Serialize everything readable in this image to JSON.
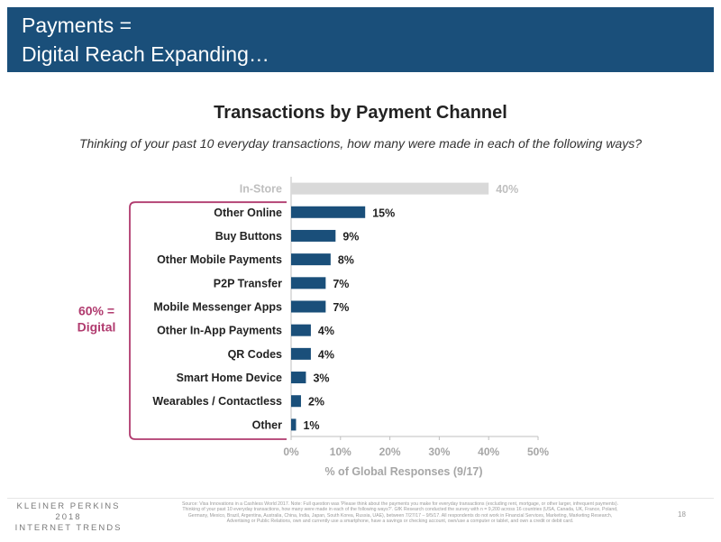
{
  "header": {
    "line1": "Payments =",
    "line2": "Digital Reach Expanding…"
  },
  "chart_data": {
    "type": "bar",
    "orientation": "horizontal",
    "title": "Transactions by Payment Channel",
    "subtitle": "Thinking of your past 10 everyday transactions, how many were made in each of the following ways?",
    "categories": [
      "In-Store",
      "Other Online",
      "Buy Buttons",
      "Other Mobile Payments",
      "P2P Transfer",
      "Mobile Messenger Apps",
      "Other In-App Payments",
      "QR Codes",
      "Smart Home Device",
      "Wearables / Contactless",
      "Other"
    ],
    "values": [
      40,
      15,
      9,
      8,
      7,
      7,
      4,
      4,
      3,
      2,
      1
    ],
    "value_labels": [
      "40%",
      "15%",
      "9%",
      "8%",
      "7%",
      "7%",
      "4%",
      "4%",
      "3%",
      "2%",
      "1%"
    ],
    "xlabel": "% of Global Responses (9/17)",
    "xlim": [
      0,
      50
    ],
    "xticks": [
      0,
      10,
      20,
      30,
      40,
      50
    ],
    "xtick_labels": [
      "0%",
      "10%",
      "20%",
      "30%",
      "40%",
      "50%"
    ],
    "grid": false,
    "colors": {
      "bar": "#1a4f7a",
      "muted_bar": "#d9d9d9",
      "muted_text": "#bfbfbf",
      "accent": "#b03a6e",
      "axis_text": "#a6a6a6"
    },
    "bracket_label_line1": "60% =",
    "bracket_label_line2": "Digital",
    "bracket_range": [
      "Other Online",
      "Other"
    ]
  },
  "footer": {
    "logo_line1": "KLEINER PERKINS",
    "logo_line2": "2018",
    "logo_line3": "INTERNET TRENDS",
    "source": "Source: Visa Innovations in a Cashless World 2017. Note: Full question was 'Please think about the payments you make for everyday transactions (excluding rent, mortgage, or other larger, infrequent payments). Thinking of your past 10 everyday transactions, how many were made in each of the following ways?'. GfK Research conducted the survey with n = 9,200 across 16 countries (USA, Canada, UK, France, Poland, Germany, Mexico, Brazil, Argentina, Australia, China, India, Japan, South Korea, Russia, UAE), between 7/27/17 – 9/5/17. All respondents do not work in Financial Services, Marketing, Marketing Research, Advertising or Public Relations, own and currently use a smartphone, have a savings or checking account, own/use a computer or tablet, and own a credit or debit card.",
    "page_number": "18"
  }
}
